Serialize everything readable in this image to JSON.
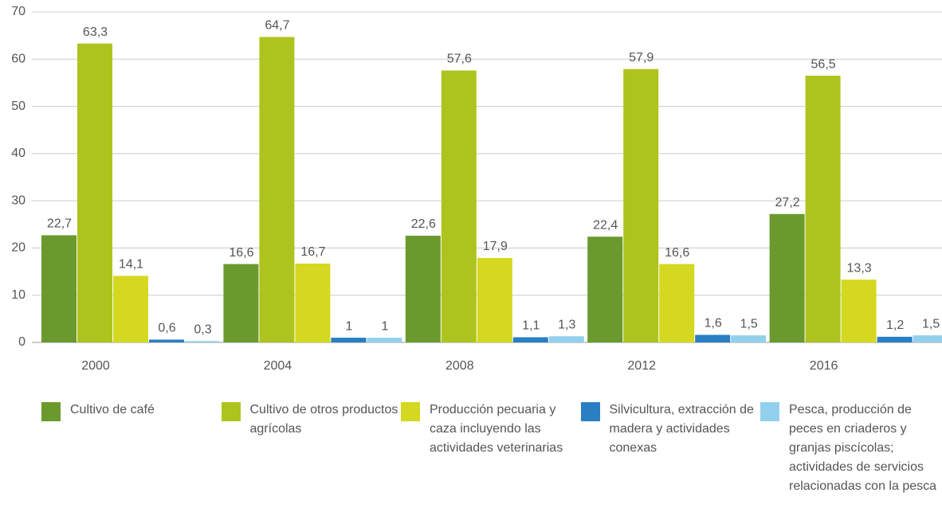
{
  "chart_data": {
    "type": "bar",
    "categories": [
      "2000",
      "2004",
      "2008",
      "2012",
      "2016"
    ],
    "series": [
      {
        "name": "Cultivo de café",
        "color": "#6a9a2e",
        "values": [
          22.7,
          16.6,
          22.6,
          22.4,
          27.2
        ],
        "value_labels": [
          "22,7",
          "16,6",
          "22,6",
          "22,4",
          "27,2"
        ]
      },
      {
        "name": "Cultivo de otros productos agrícolas",
        "color": "#aec41e",
        "values": [
          63.3,
          64.7,
          57.6,
          57.9,
          56.5
        ],
        "value_labels": [
          "63,3",
          "64,7",
          "57,6",
          "57,9",
          "56,5"
        ]
      },
      {
        "name": "Producción pecuaria y caza incluyendo las actividades veterinarias",
        "color": "#d4d820",
        "values": [
          14.1,
          16.7,
          17.9,
          16.6,
          13.3
        ],
        "value_labels": [
          "14,1",
          "16,7",
          "17,9",
          "16,6",
          "13,3"
        ]
      },
      {
        "name": "Silvicultura, extracción de madera y actividades conexas",
        "color": "#2a7ec2",
        "values": [
          0.6,
          1,
          1.1,
          1.6,
          1.2
        ],
        "value_labels": [
          "0,6",
          "1",
          "1,1",
          "1,6",
          "1,2"
        ]
      },
      {
        "name": "Pesca, producción de peces en criaderos y granjas piscícolas; actividades de servicios relacionadas con la pesca",
        "color": "#93d0ee",
        "values": [
          0.3,
          1,
          1.3,
          1.5,
          1.5
        ],
        "value_labels": [
          "0,3",
          "1",
          "1,3",
          "1,5",
          "1,5"
        ]
      }
    ],
    "ylim": [
      0,
      70
    ],
    "yticks": [
      0,
      10,
      20,
      30,
      40,
      50,
      60,
      70
    ],
    "grid": true,
    "legend": "bottom"
  }
}
